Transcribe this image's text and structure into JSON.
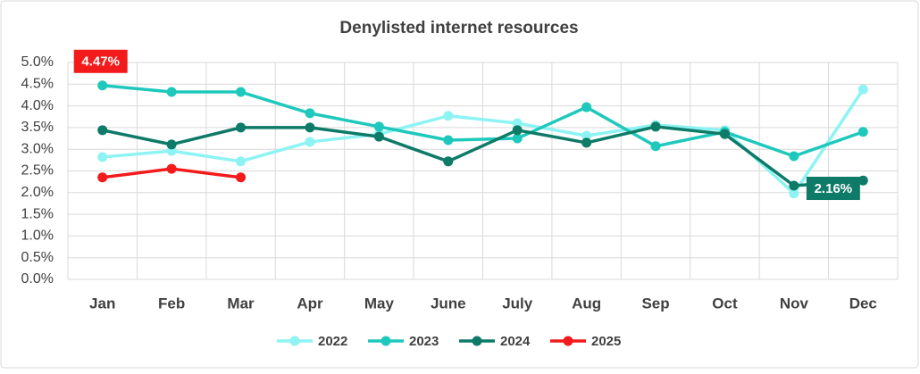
{
  "chart_data": {
    "type": "line",
    "title": "Denylisted internet resources",
    "categories": [
      "Jan",
      "Feb",
      "Mar",
      "Apr",
      "May",
      "June",
      "July",
      "Aug",
      "Sep",
      "Oct",
      "Nov",
      "Dec"
    ],
    "series": [
      {
        "name": "2022",
        "color": "#8ef3f3",
        "values": [
          2.82,
          2.96,
          2.72,
          3.17,
          3.35,
          3.77,
          3.6,
          3.31,
          3.56,
          3.44,
          1.98,
          4.38
        ]
      },
      {
        "name": "2023",
        "color": "#1ec8bc",
        "values": [
          4.47,
          4.32,
          4.32,
          3.83,
          3.52,
          3.21,
          3.25,
          3.97,
          3.07,
          3.4,
          2.84,
          3.4
        ],
        "value_labels": [
          "4.47%",
          null,
          null,
          null,
          null,
          null,
          null,
          null,
          null,
          null,
          null,
          null
        ]
      },
      {
        "name": "2024",
        "color": "#0e7a68",
        "values": [
          3.44,
          3.11,
          3.5,
          3.5,
          3.29,
          2.72,
          3.44,
          3.15,
          3.52,
          3.35,
          2.16,
          2.28
        ],
        "value_labels": [
          null,
          null,
          null,
          null,
          null,
          null,
          null,
          null,
          null,
          null,
          "2.16%",
          null
        ]
      },
      {
        "name": "2025",
        "color": "#f21a1a",
        "values": [
          2.35,
          2.55,
          2.35,
          null,
          null,
          null,
          null,
          null,
          null,
          null,
          null,
          null
        ]
      }
    ],
    "ylim": [
      0,
      5
    ],
    "yticks": [
      {
        "value": 0,
        "label": "0.0%"
      },
      {
        "value": 0.5,
        "label": "0.5%"
      },
      {
        "value": 1,
        "label": "1.0%"
      },
      {
        "value": 1.5,
        "label": "1.5%"
      },
      {
        "value": 2,
        "label": "2.0%"
      },
      {
        "value": 2.5,
        "label": "2.5%"
      },
      {
        "value": 3,
        "label": "3.0%"
      },
      {
        "value": 3.5,
        "label": "3.5%"
      },
      {
        "value": 4,
        "label": "4.0%"
      },
      {
        "value": 4.5,
        "label": "4.5%"
      },
      {
        "value": 5,
        "label": "5.0%"
      }
    ],
    "grid": true,
    "legend": "bottom"
  }
}
